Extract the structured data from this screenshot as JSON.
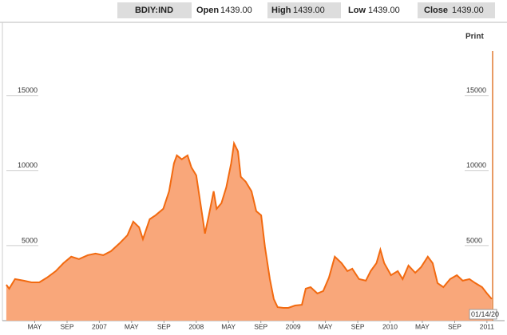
{
  "header": {
    "ticker": "BDIY:IND",
    "fields": [
      {
        "label": "Open",
        "value": "1439.00"
      },
      {
        "label": "High",
        "value": "1439.00"
      },
      {
        "label": "Low",
        "value": "1439.00"
      },
      {
        "label": "Close",
        "value": "1439.00"
      }
    ]
  },
  "print": "Print",
  "chart_data": {
    "type": "area",
    "color": "#f9a77a",
    "line_color": "#f26a10",
    "annotation": "01/14/20",
    "x": [
      2006.04,
      2006.07,
      2006.13,
      2006.22,
      2006.3,
      2006.38,
      2006.46,
      2006.55,
      2006.63,
      2006.71,
      2006.79,
      2006.88,
      2006.96,
      2007.04,
      2007.12,
      2007.21,
      2007.29,
      2007.35,
      2007.41,
      2007.45,
      2007.52,
      2007.58,
      2007.66,
      2007.72,
      2007.77,
      2007.8,
      2007.85,
      2007.91,
      2007.95,
      2008.0,
      2008.05,
      2008.09,
      2008.13,
      2008.18,
      2008.21,
      2008.26,
      2008.31,
      2008.36,
      2008.39,
      2008.43,
      2008.46,
      2008.51,
      2008.57,
      2008.62,
      2008.67,
      2008.71,
      2008.76,
      2008.8,
      2008.84,
      2008.9,
      2008.95,
      2009.02,
      2009.09,
      2009.13,
      2009.18,
      2009.25,
      2009.31,
      2009.37,
      2009.43,
      2009.5,
      2009.56,
      2009.61,
      2009.68,
      2009.75,
      2009.8,
      2009.86,
      2009.9,
      2009.94,
      2010.01,
      2010.08,
      2010.13,
      2010.19,
      2010.26,
      2010.32,
      2010.39,
      2010.44,
      2010.49,
      2010.55,
      2010.62,
      2010.69,
      2010.75,
      2010.82,
      2010.88,
      2010.95,
      2011.0,
      2011.05
    ],
    "values": [
      2390,
      2130,
      2770,
      2660,
      2550,
      2550,
      2870,
      3300,
      3830,
      4260,
      4100,
      4360,
      4470,
      4360,
      4630,
      5160,
      5690,
      6600,
      6220,
      5430,
      6760,
      7020,
      7450,
      8620,
      10480,
      11010,
      10750,
      11010,
      10210,
      9680,
      7550,
      5800,
      7020,
      8620,
      7450,
      7820,
      8880,
      10480,
      11810,
      11280,
      9580,
      9260,
      8620,
      7290,
      7020,
      4890,
      2770,
      1440,
      900,
      850,
      850,
      1010,
      1060,
      2130,
      2230,
      1810,
      1970,
      2870,
      4260,
      3830,
      3300,
      3460,
      2770,
      2660,
      3300,
      3830,
      4730,
      3830,
      3030,
      3300,
      2770,
      3670,
      3190,
      3560,
      4260,
      3830,
      2500,
      2230,
      2770,
      3030,
      2660,
      2770,
      2500,
      2230,
      1810,
      1439
    ],
    "xlim": [
      2006.035,
      2011.1
    ],
    "ylim": [
      0,
      19500
    ],
    "yticks": [
      5000,
      10000,
      15000
    ],
    "xticks": [
      {
        "value": 2006.333,
        "label": "MAY"
      },
      {
        "value": 2006.667,
        "label": "SEP"
      },
      {
        "value": 2007,
        "label": "2007"
      },
      {
        "value": 2007.333,
        "label": "MAY"
      },
      {
        "value": 2007.667,
        "label": "SEP"
      },
      {
        "value": 2008,
        "label": "2008"
      },
      {
        "value": 2008.333,
        "label": "MAY"
      },
      {
        "value": 2008.667,
        "label": "SEP"
      },
      {
        "value": 2009,
        "label": "2009"
      },
      {
        "value": 2009.333,
        "label": "MAY"
      },
      {
        "value": 2009.667,
        "label": "SEP"
      },
      {
        "value": 2010,
        "label": "2010"
      },
      {
        "value": 2010.333,
        "label": "MAY"
      },
      {
        "value": 2010.667,
        "label": "SEP"
      },
      {
        "value": 2011,
        "label": "2011"
      }
    ]
  }
}
